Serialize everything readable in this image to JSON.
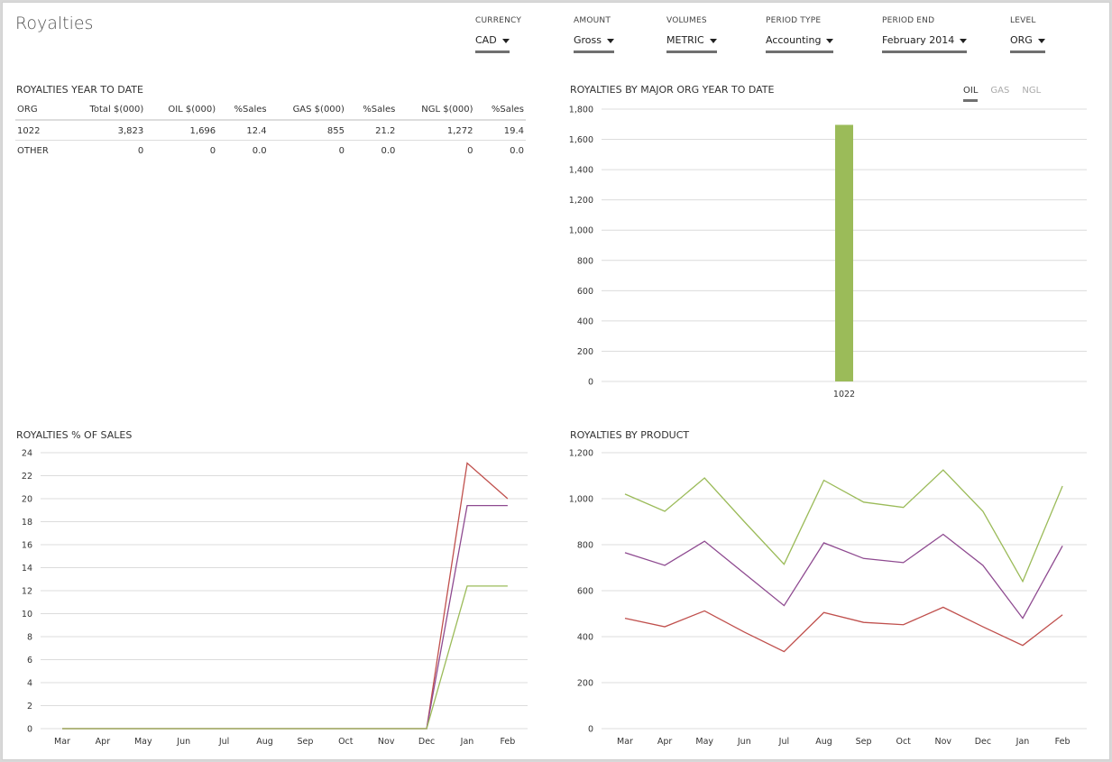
{
  "app_title": "Royalties",
  "filters": [
    {
      "label": "CURRENCY",
      "value": "CAD"
    },
    {
      "label": "AMOUNT",
      "value": "Gross"
    },
    {
      "label": "VOLUMES",
      "value": "METRIC"
    },
    {
      "label": "PERIOD TYPE",
      "value": "Accounting"
    },
    {
      "label": "PERIOD END",
      "value": "February 2014"
    },
    {
      "label": "LEVEL",
      "value": "ORG"
    }
  ],
  "ytd_table": {
    "title": "ROYALTIES YEAR TO DATE",
    "columns": [
      "ORG",
      "Total $(000)",
      "OIL $(000)",
      "%Sales",
      "GAS $(000)",
      "%Sales",
      "NGL $(000)",
      "%Sales"
    ],
    "rows": [
      [
        "1022",
        "3,823",
        "1,696",
        "12.4",
        "855",
        "21.2",
        "1,272",
        "19.4"
      ],
      [
        "OTHER",
        "0",
        "0",
        "0.0",
        "0",
        "0.0",
        "0",
        "0.0"
      ]
    ]
  },
  "product_tabs": {
    "items": [
      "OIL",
      "GAS",
      "NGL"
    ],
    "selected": "OIL"
  },
  "colors": {
    "oil": "#9bbb59",
    "gas": "#c0504d",
    "ngl": "#8e4a90",
    "bar": "#9bbb59"
  },
  "chart_data": [
    {
      "type": "bar",
      "title": "ROYALTIES BY MAJOR ORG YEAR TO DATE",
      "categories": [
        "1022"
      ],
      "values": [
        1696
      ],
      "ylim": [
        0,
        1800
      ],
      "yticks": [
        0,
        200,
        400,
        600,
        800,
        1000,
        1200,
        1400,
        1600,
        1800
      ],
      "ytick_labels": [
        "0",
        "200",
        "400",
        "600",
        "800",
        "1,000",
        "1,200",
        "1,400",
        "1,600",
        "1,800"
      ],
      "grid": true
    },
    {
      "type": "line",
      "title": "ROYALTIES % OF SALES",
      "categories": [
        "Mar",
        "Apr",
        "May",
        "Jun",
        "Jul",
        "Aug",
        "Sep",
        "Oct",
        "Nov",
        "Dec",
        "Jan",
        "Feb"
      ],
      "series": [
        {
          "color": "#c0504d",
          "values": [
            0,
            0,
            0,
            0,
            0,
            0,
            0,
            0,
            0,
            0,
            23.1,
            20.0
          ]
        },
        {
          "color": "#8e4a90",
          "values": [
            0,
            0,
            0,
            0,
            0,
            0,
            0,
            0,
            0,
            0,
            19.4,
            19.4
          ]
        },
        {
          "color": "#9bbb59",
          "values": [
            0,
            0,
            0,
            0,
            0,
            0,
            0,
            0,
            0,
            0,
            12.4,
            12.4
          ]
        }
      ],
      "ylim": [
        0,
        24
      ],
      "yticks": [
        0,
        2,
        4,
        6,
        8,
        10,
        12,
        14,
        16,
        18,
        20,
        22,
        24
      ],
      "ytick_labels": [
        "0",
        "2",
        "4",
        "6",
        "8",
        "10",
        "12",
        "14",
        "16",
        "18",
        "20",
        "22",
        "24"
      ],
      "grid": true
    },
    {
      "type": "line",
      "title": "ROYALTIES BY PRODUCT",
      "categories": [
        "Mar",
        "Apr",
        "May",
        "Jun",
        "Jul",
        "Aug",
        "Sep",
        "Oct",
        "Nov",
        "Dec",
        "Jan",
        "Feb"
      ],
      "series": [
        {
          "color": "#9bbb59",
          "values": [
            1020,
            945,
            1090,
            900,
            715,
            1080,
            985,
            962,
            1125,
            945,
            640,
            1055
          ]
        },
        {
          "color": "#8e4a90",
          "values": [
            765,
            710,
            815,
            675,
            535,
            808,
            740,
            722,
            845,
            710,
            480,
            795
          ]
        },
        {
          "color": "#c0504d",
          "values": [
            480,
            443,
            512,
            420,
            335,
            505,
            462,
            452,
            528,
            443,
            362,
            495
          ]
        }
      ],
      "ylim": [
        0,
        1200
      ],
      "yticks": [
        0,
        200,
        400,
        600,
        800,
        1000,
        1200
      ],
      "ytick_labels": [
        "0",
        "200",
        "400",
        "600",
        "800",
        "1,000",
        "1,200"
      ],
      "grid": true
    }
  ]
}
